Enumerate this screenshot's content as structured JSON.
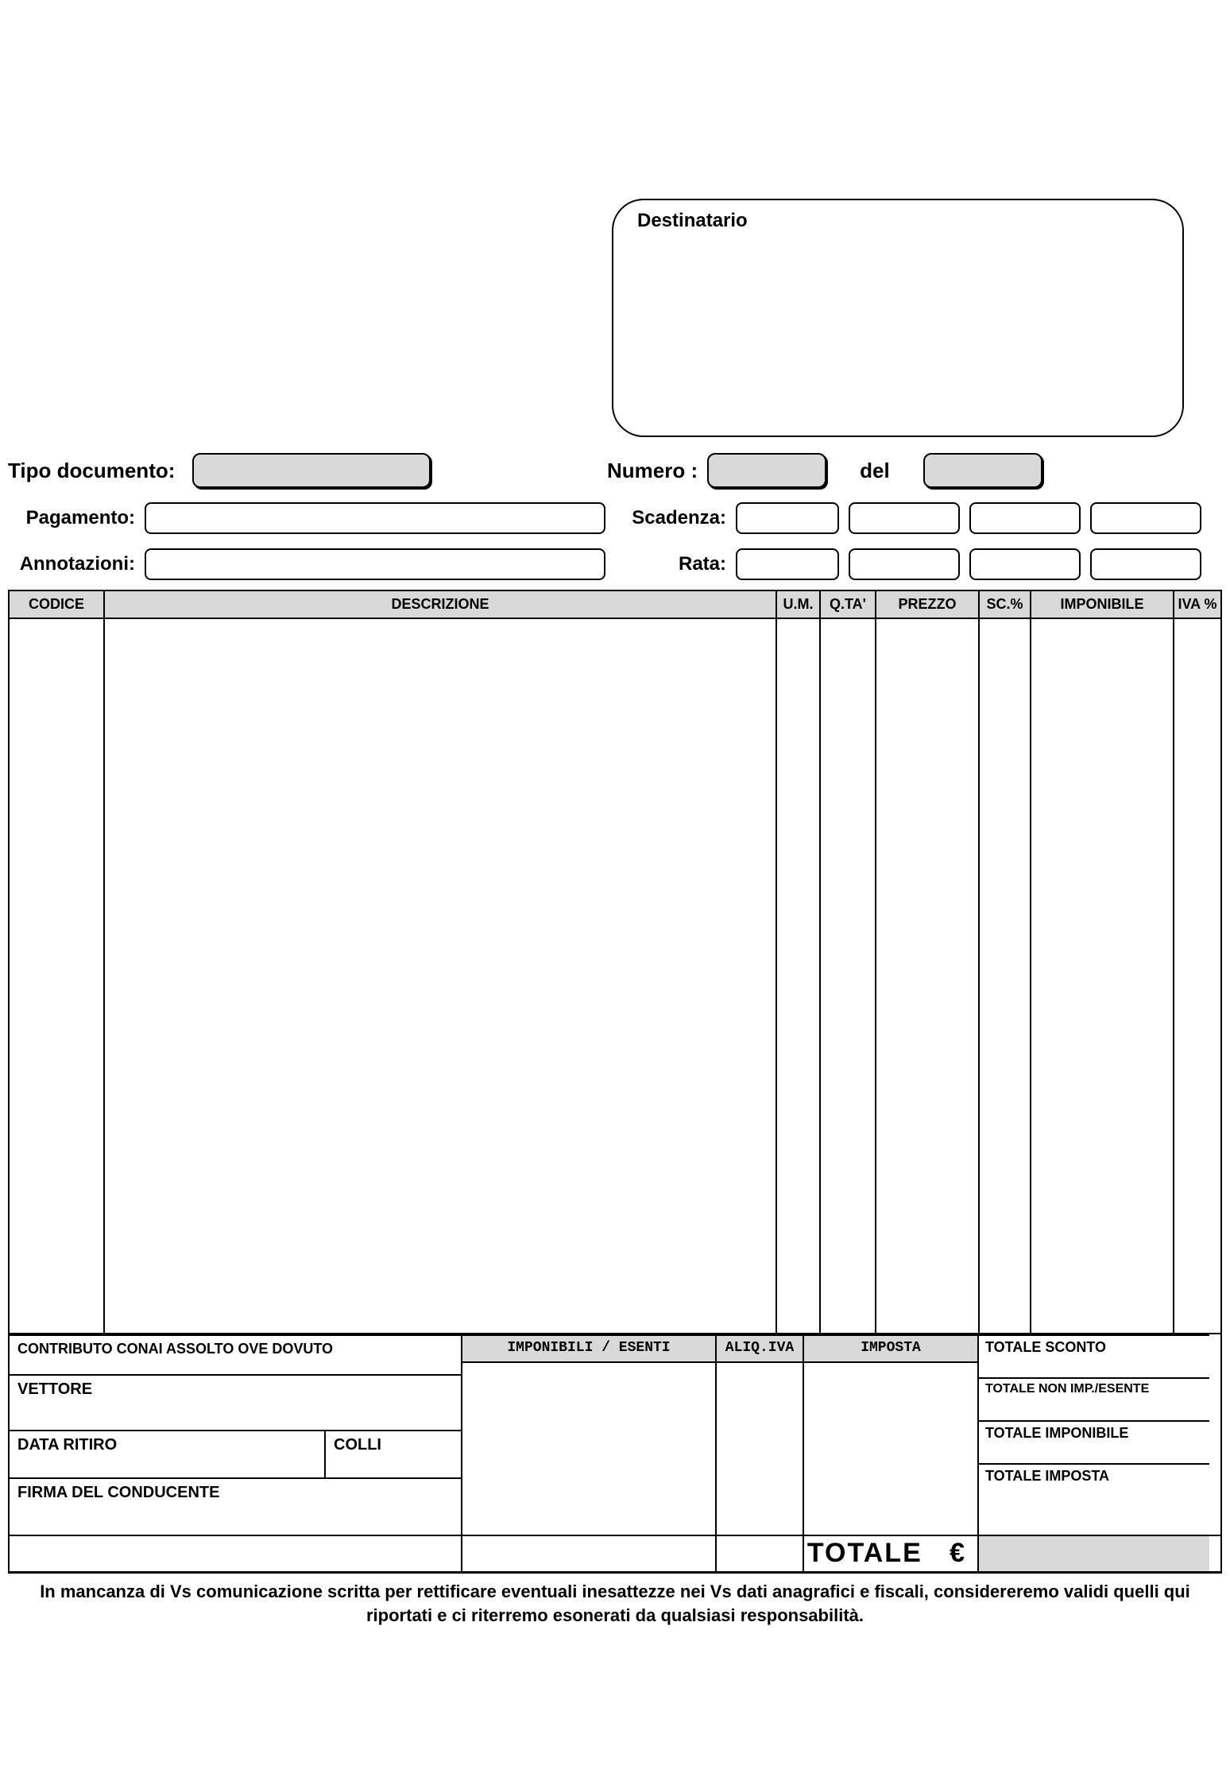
{
  "colors": {
    "background": "#ffffff",
    "field_fill": "#d9d9d9",
    "border": "#000000",
    "text": "#000000"
  },
  "destinatario": {
    "label": "Destinatario"
  },
  "header": {
    "tipo_label": "Tipo documento:",
    "numero_label": "Numero :",
    "del_label": "del",
    "pagamento_label": "Pagamento:",
    "scadenza_label": "Scadenza:",
    "annotazioni_label": "Annotazioni:",
    "rata_label": "Rata:"
  },
  "table": {
    "columns": {
      "codice": "CODICE",
      "descrizione": "DESCRIZIONE",
      "um": "U.M.",
      "qta": "Q.TA'",
      "prezzo": "PREZZO",
      "sc": "SC.%",
      "imponibile": "IMPONIBILE",
      "iva": "IVA %"
    }
  },
  "footer": {
    "conai": "CONTRIBUTO CONAI ASSOLTO OVE DOVUTO",
    "imponibili_esenti": "IMPONIBILI / ESENTI",
    "aliq_iva": "ALIQ.IVA",
    "imposta": "IMPOSTA",
    "totale_sconto": "TOTALE SCONTO",
    "vettore": "VETTORE",
    "totale_non_imp": "TOTALE NON IMP./ESENTE",
    "data_ritiro": "DATA RITIRO",
    "colli": "COLLI",
    "totale_imponibile": "TOTALE IMPONIBILE",
    "firma": "FIRMA DEL CONDUCENTE",
    "totale_imposta": "TOTALE IMPOSTA",
    "totale_label": "TOTALE   €"
  },
  "disclaimer": "In mancanza di Vs comunicazione scritta per rettificare eventuali inesattezze nei Vs dati anagrafici e fiscali, considereremo validi quelli qui riportati e ci riterremo esonerati da qualsiasi responsabilità."
}
